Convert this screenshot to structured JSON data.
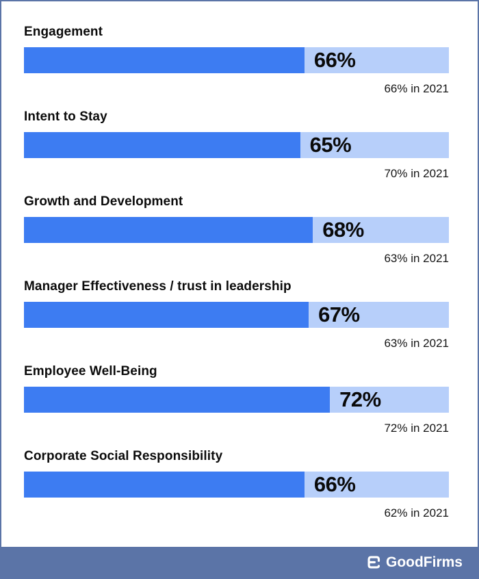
{
  "chart_data": {
    "type": "bar",
    "title": "",
    "categories": [
      "Engagement",
      "Intent to Stay",
      "Growth and Development",
      "Manager Effectiveness / trust in leadership",
      "Employee Well-Being",
      "Corporate Social Responsibility"
    ],
    "values": [
      66,
      65,
      68,
      67,
      72,
      66
    ],
    "value_labels": [
      "66%",
      "65%",
      "68%",
      "67%",
      "72%",
      "66%"
    ],
    "annotations": [
      "66% in 2021",
      "70% in 2021",
      "63% in 2021",
      "63% in 2021",
      "72% in 2021",
      "62% in 2021"
    ],
    "previous_year_values": [
      66,
      70,
      63,
      63,
      72,
      62
    ],
    "xlim": [
      0,
      100
    ],
    "grid": false,
    "legend": false,
    "bar_orientation": "horizontal"
  },
  "colors": {
    "bar_fill": "#3d7cf2",
    "bar_track": "#b7cffa",
    "footer_bg": "#5b74a7",
    "frame_border": "#5b74a7",
    "text": "#0b0b0b"
  },
  "footer": {
    "brand": "GoodFirms"
  }
}
